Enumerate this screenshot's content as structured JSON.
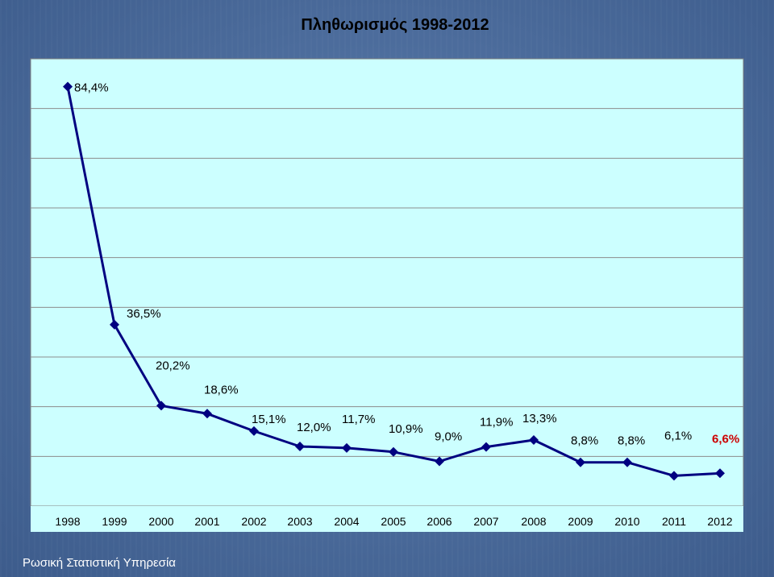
{
  "chart_data": {
    "type": "line",
    "title": "Πληθωρισμός 1998-2012",
    "categories": [
      "1998",
      "1999",
      "2000",
      "2001",
      "2002",
      "2003",
      "2004",
      "2005",
      "2006",
      "2007",
      "2008",
      "2009",
      "2010",
      "2011",
      "2012"
    ],
    "series": [
      {
        "values": [
          84.4,
          36.5,
          20.2,
          18.6,
          15.1,
          12.0,
          11.7,
          10.9,
          9.0,
          11.9,
          13.3,
          8.8,
          8.8,
          6.1,
          6.6
        ]
      }
    ],
    "data_labels": [
      "84,4%",
      "36,5%",
      "20,2%",
      "18,6%",
      "15,1%",
      "12,0%",
      "11,7%",
      "10,9%",
      "9,0%",
      "11,9%",
      "13,3%",
      "8,8%",
      "8,8%",
      "6,1%",
      "6,6%"
    ],
    "ylim": [
      0,
      90
    ],
    "grid": true,
    "line_color": "#000080",
    "highlight_last_label_color": "#cc0000",
    "plot_background": "#ccffff"
  },
  "footer": "Ρωσική Στατιστική Υπηρεσία"
}
